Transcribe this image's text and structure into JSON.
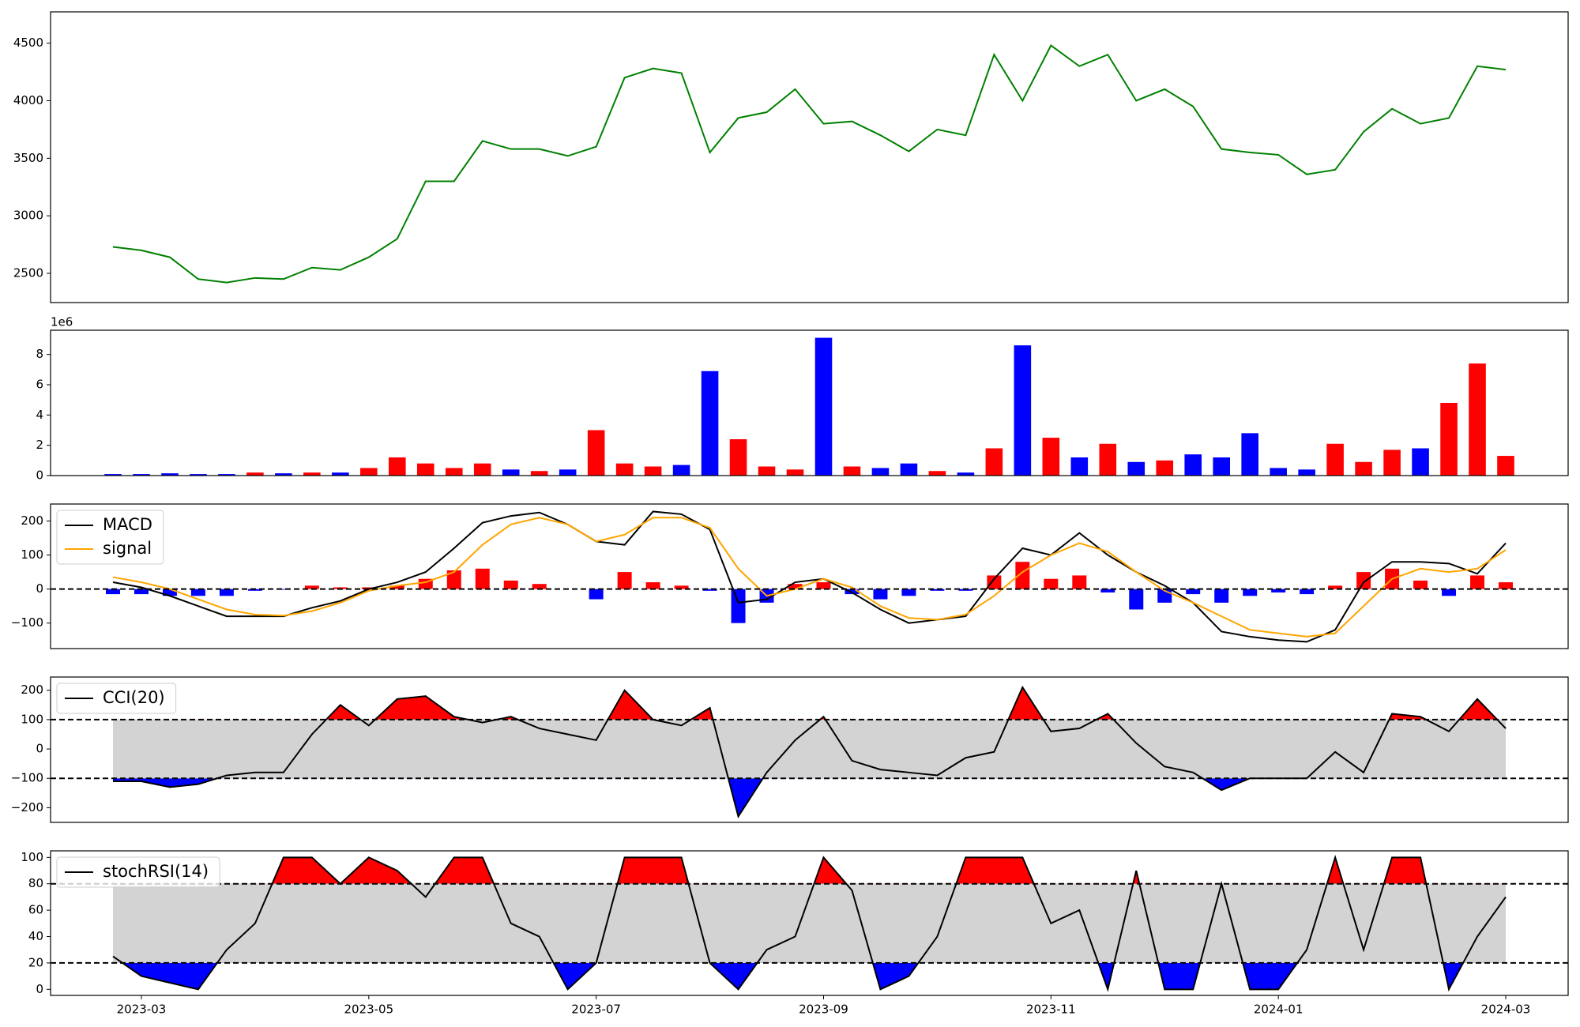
{
  "chart_data": [
    {
      "type": "line",
      "series": [
        {
          "color": "green",
          "values": [
            2730,
            2700,
            2640,
            2450,
            2420,
            2460,
            2450,
            2550,
            2530,
            2640,
            2800,
            3300,
            3300,
            3650,
            3580,
            3580,
            3520,
            3600,
            4200,
            4280,
            4240,
            3550,
            3850,
            3900,
            4100,
            3800,
            3820,
            3700,
            3560,
            3750,
            3700,
            4400,
            4000,
            4480,
            4300,
            4400,
            4000,
            4100,
            3950,
            3580,
            3550,
            3530,
            3360,
            3400,
            3730,
            3930,
            3800,
            3850,
            4300,
            4270
          ]
        }
      ],
      "ylim": [
        2246,
        4772
      ],
      "yticks": [
        2500,
        3000,
        3500,
        4000,
        4500
      ]
    },
    {
      "type": "bar",
      "offset_label": "1e6",
      "series": [
        {
          "color": "red",
          "values": [
            null,
            null,
            null,
            null,
            null,
            0.2,
            null,
            0.2,
            null,
            0.5,
            1.2,
            0.8,
            0.5,
            0.8,
            null,
            0.3,
            null,
            3.0,
            0.8,
            0.6,
            null,
            null,
            2.4,
            0.6,
            0.4,
            null,
            0.6,
            null,
            null,
            0.3,
            null,
            1.8,
            null,
            2.5,
            null,
            2.1,
            null,
            1.0,
            null,
            null,
            null,
            null,
            null,
            2.1,
            0.9,
            1.7,
            null,
            4.8,
            7.4,
            1.3
          ]
        },
        {
          "color": "blue",
          "values": [
            0.1,
            0.1,
            0.15,
            0.1,
            0.1,
            null,
            0.15,
            null,
            0.2,
            null,
            null,
            null,
            null,
            null,
            0.4,
            null,
            0.4,
            null,
            null,
            null,
            0.7,
            6.9,
            null,
            null,
            null,
            9.1,
            null,
            0.5,
            0.8,
            null,
            0.2,
            null,
            8.6,
            null,
            1.2,
            null,
            0.9,
            null,
            1.4,
            1.2,
            2.8,
            0.5,
            0.4,
            null,
            null,
            null,
            1.8,
            null,
            null,
            null
          ]
        }
      ],
      "ylim": [
        0,
        9.6
      ],
      "yticks": [
        0,
        2,
        4,
        6,
        8
      ]
    },
    {
      "type": "line",
      "legend": "upper left",
      "series": [
        {
          "name": "MACD",
          "color": "black",
          "values": [
            20,
            5,
            -20,
            -50,
            -80,
            -80,
            -80,
            -55,
            -35,
            0,
            20,
            50,
            120,
            195,
            215,
            225,
            190,
            140,
            130,
            228,
            220,
            175,
            -40,
            -30,
            20,
            30,
            -10,
            -60,
            -100,
            -90,
            -80,
            30,
            120,
            100,
            165,
            100,
            50,
            10,
            -40,
            -125,
            -140,
            -150,
            -155,
            -120,
            20,
            80,
            80,
            75,
            45,
            135
          ]
        },
        {
          "name": "signal",
          "color": "orange",
          "values": [
            35,
            20,
            0,
            -30,
            -60,
            -75,
            -78,
            -65,
            -40,
            -5,
            10,
            20,
            50,
            130,
            190,
            210,
            190,
            140,
            160,
            210,
            210,
            180,
            60,
            -20,
            0,
            30,
            5,
            -50,
            -85,
            -90,
            -75,
            -20,
            50,
            100,
            135,
            110,
            50,
            -5,
            -40,
            -80,
            -120,
            -130,
            -140,
            -130,
            -50,
            30,
            60,
            50,
            60,
            115
          ]
        }
      ],
      "histogram": {
        "pos_color": "red",
        "neg_color": "blue",
        "values": [
          -15,
          -15,
          -20,
          -20,
          -20,
          -5,
          -2,
          10,
          5,
          5,
          10,
          30,
          55,
          60,
          25,
          15,
          0,
          -30,
          50,
          20,
          10,
          -5,
          -100,
          -40,
          15,
          20,
          -15,
          -30,
          -20,
          -5,
          -5,
          40,
          80,
          30,
          40,
          -10,
          -60,
          -40,
          -15,
          -40,
          -20,
          -10,
          -15,
          10,
          50,
          60,
          25,
          -20,
          40,
          20
        ]
      },
      "hlines": [
        0
      ],
      "ylim": [
        -175,
        250
      ],
      "yticks": [
        {
          "value": -100,
          "label": "−100"
        },
        0,
        100,
        200
      ]
    },
    {
      "type": "line",
      "legend": "upper left",
      "series": [
        {
          "name": "CCI(20)",
          "color": "black",
          "values": [
            -110,
            -110,
            -130,
            -120,
            -90,
            -80,
            -80,
            50,
            150,
            80,
            170,
            180,
            110,
            90,
            110,
            70,
            50,
            30,
            200,
            100,
            80,
            140,
            -230,
            -80,
            30,
            110,
            -40,
            -70,
            -80,
            -90,
            -30,
            -10,
            210,
            60,
            70,
            120,
            20,
            -60,
            -80,
            -140,
            -100,
            -100,
            -100,
            -10,
            -80,
            120,
            110,
            60,
            170,
            70
          ]
        }
      ],
      "bands": [
        -100,
        100
      ],
      "band_color": "lightgray",
      "above_color": "red",
      "below_color": "blue",
      "ylim": [
        -250,
        245
      ],
      "yticks": [
        {
          "value": -200,
          "label": "−200"
        },
        {
          "value": -100,
          "label": "−100"
        },
        0,
        100,
        200
      ]
    },
    {
      "type": "line",
      "legend": "upper left",
      "series": [
        {
          "name": "stochRSI(14)",
          "color": "black",
          "values": [
            25,
            10,
            5,
            0,
            30,
            50,
            100,
            100,
            80,
            100,
            90,
            70,
            100,
            100,
            50,
            40,
            0,
            20,
            100,
            100,
            100,
            20,
            0,
            30,
            40,
            100,
            75,
            0,
            10,
            40,
            100,
            100,
            100,
            50,
            60,
            0,
            90,
            0,
            0,
            80,
            0,
            0,
            30,
            100,
            30,
            100,
            100,
            0,
            40,
            70
          ]
        }
      ],
      "bands": [
        20,
        80
      ],
      "band_color": "lightgray",
      "above_color": "red",
      "below_color": "blue",
      "categories": [
        null,
        "2023-03",
        null,
        null,
        null,
        null,
        null,
        null,
        null,
        "2023-05",
        null,
        null,
        null,
        null,
        null,
        null,
        null,
        "2023-07",
        null,
        null,
        null,
        null,
        null,
        null,
        null,
        "2023-09",
        null,
        null,
        null,
        null,
        null,
        null,
        null,
        "2023-11",
        null,
        null,
        null,
        null,
        null,
        null,
        null,
        "2024-01",
        null,
        null,
        null,
        null,
        null,
        null,
        null,
        "2024-03"
      ],
      "ylim": [
        -4.6,
        105
      ],
      "yticks": [
        0,
        20,
        40,
        60,
        80,
        100
      ]
    }
  ]
}
